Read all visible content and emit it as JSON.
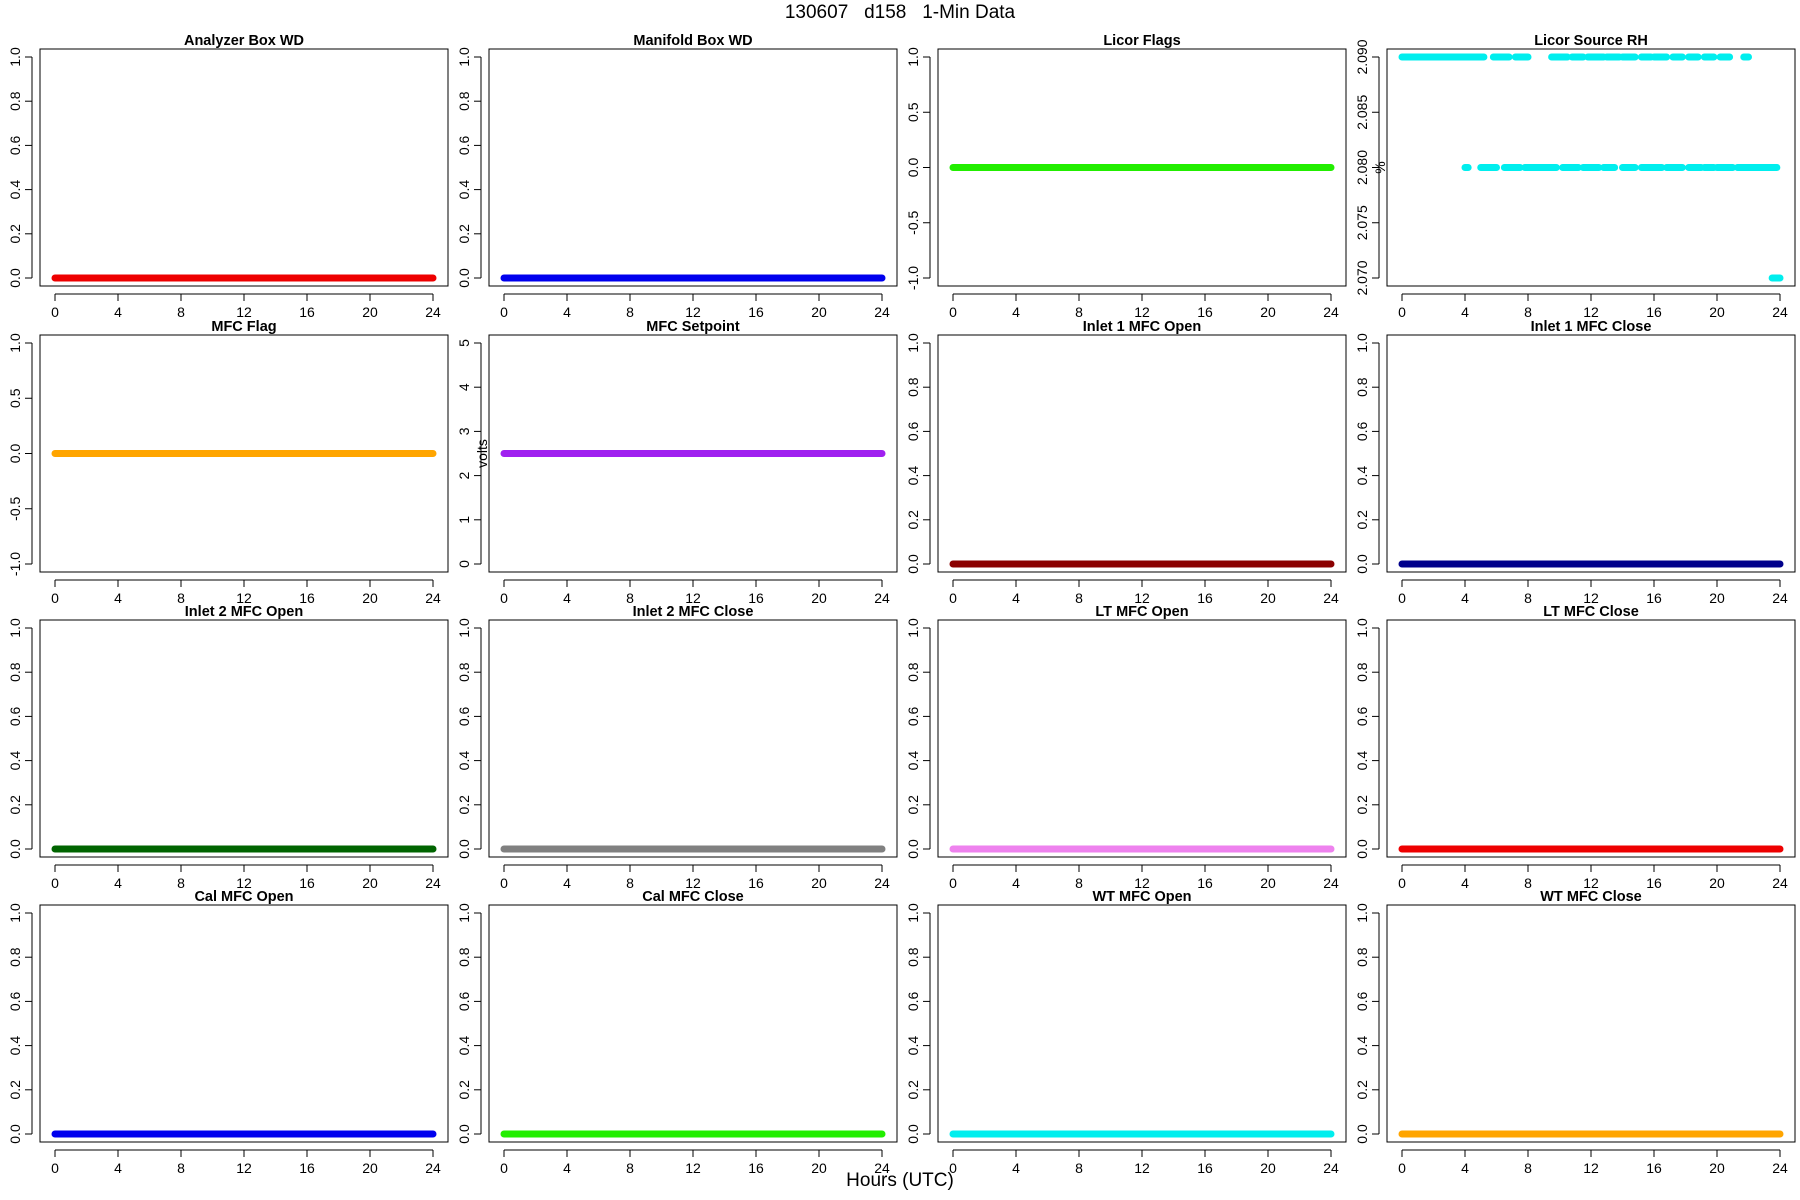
{
  "figure": {
    "title": "130607   d158   1-Min Data",
    "xlabel": "Hours (UTC)"
  },
  "chart_data": [
    {
      "type": "scatter",
      "title": "Analyzer Box WD",
      "xlabel": "",
      "ylabel": "",
      "xlim": [
        0,
        24
      ],
      "ylim": [
        0,
        1
      ],
      "xticks": [
        0,
        4,
        8,
        12,
        16,
        20,
        24
      ],
      "yticks": [
        0,
        0.2,
        0.4,
        0.6,
        0.8,
        1.0
      ],
      "ytick_labels": [
        "0.0",
        "0.2",
        "0.4",
        "0.6",
        "0.8",
        "1.0"
      ],
      "color": "#ee0000",
      "series": [
        {
          "segments": [
            [
              0,
              24,
              0
            ]
          ]
        }
      ]
    },
    {
      "type": "scatter",
      "title": "Manifold Box WD",
      "xlabel": "",
      "ylabel": "",
      "xlim": [
        0,
        24
      ],
      "ylim": [
        0,
        1
      ],
      "xticks": [
        0,
        4,
        8,
        12,
        16,
        20,
        24
      ],
      "yticks": [
        0,
        0.2,
        0.4,
        0.6,
        0.8,
        1.0
      ],
      "ytick_labels": [
        "0.0",
        "0.2",
        "0.4",
        "0.6",
        "0.8",
        "1.0"
      ],
      "color": "#0000ee",
      "series": [
        {
          "segments": [
            [
              0,
              24,
              0
            ]
          ]
        }
      ]
    },
    {
      "type": "scatter",
      "title": "Licor Flags",
      "xlabel": "",
      "ylabel": "",
      "xlim": [
        0,
        24
      ],
      "ylim": [
        -1,
        1
      ],
      "xticks": [
        0,
        4,
        8,
        12,
        16,
        20,
        24
      ],
      "yticks": [
        -1,
        -0.5,
        0,
        0.5,
        1.0
      ],
      "ytick_labels": [
        "-1.0",
        "-0.5",
        "0.0",
        "0.5",
        "1.0"
      ],
      "color": "#22ee00",
      "series": [
        {
          "segments": [
            [
              0,
              24,
              0
            ]
          ]
        }
      ]
    },
    {
      "type": "scatter",
      "title": "Licor Source RH",
      "xlabel": "",
      "ylabel": "%",
      "xlim": [
        0,
        24
      ],
      "ylim": [
        2.07,
        2.09
      ],
      "xticks": [
        0,
        4,
        8,
        12,
        16,
        20,
        24
      ],
      "yticks": [
        2.07,
        2.075,
        2.08,
        2.085,
        2.09
      ],
      "ytick_labels": [
        "2.070",
        "2.075",
        "2.080",
        "2.085",
        "2.090"
      ],
      "color": "#00eeee",
      "series": [
        {
          "segments": [
            [
              0,
              5.2,
              2.09
            ],
            [
              5.8,
              6.8,
              2.09
            ],
            [
              7.2,
              8.0,
              2.09
            ],
            [
              9.5,
              10.5,
              2.09
            ],
            [
              10.8,
              11.5,
              2.09
            ],
            [
              11.8,
              12.8,
              2.09
            ],
            [
              13.0,
              13.8,
              2.09
            ],
            [
              14.0,
              14.8,
              2.09
            ],
            [
              15.2,
              15.8,
              2.09
            ],
            [
              16.0,
              16.8,
              2.09
            ],
            [
              17.2,
              17.8,
              2.09
            ],
            [
              18.2,
              18.8,
              2.09
            ],
            [
              19.2,
              19.8,
              2.09
            ],
            [
              20.2,
              20.8,
              2.09
            ],
            [
              21.7,
              22.0,
              2.09
            ],
            [
              4.0,
              4.2,
              2.08
            ],
            [
              5.0,
              6.0,
              2.08
            ],
            [
              6.5,
              7.5,
              2.08
            ],
            [
              7.8,
              9.8,
              2.08
            ],
            [
              10.2,
              11.2,
              2.08
            ],
            [
              11.5,
              12.5,
              2.08
            ],
            [
              12.8,
              13.5,
              2.08
            ],
            [
              14.0,
              14.8,
              2.08
            ],
            [
              15.2,
              16.5,
              2.08
            ],
            [
              16.8,
              17.8,
              2.08
            ],
            [
              18.2,
              19.0,
              2.08
            ],
            [
              19.2,
              19.8,
              2.08
            ],
            [
              20.0,
              21.0,
              2.08
            ],
            [
              21.3,
              23.8,
              2.08
            ],
            [
              23.5,
              24.0,
              2.07
            ]
          ]
        }
      ]
    },
    {
      "type": "scatter",
      "title": "MFC Flag",
      "xlabel": "",
      "ylabel": "",
      "xlim": [
        0,
        24
      ],
      "ylim": [
        -1,
        1
      ],
      "xticks": [
        0,
        4,
        8,
        12,
        16,
        20,
        24
      ],
      "yticks": [
        -1,
        -0.5,
        0,
        0.5,
        1.0
      ],
      "ytick_labels": [
        "-1.0",
        "-0.5",
        "0.0",
        "0.5",
        "1.0"
      ],
      "color": "#ffa500",
      "series": [
        {
          "segments": [
            [
              0,
              24,
              0
            ]
          ]
        }
      ]
    },
    {
      "type": "scatter",
      "title": "MFC Setpoint",
      "xlabel": "",
      "ylabel": "volts",
      "xlim": [
        0,
        24
      ],
      "ylim": [
        0,
        5
      ],
      "xticks": [
        0,
        4,
        8,
        12,
        16,
        20,
        24
      ],
      "yticks": [
        0,
        1,
        2,
        3,
        4,
        5
      ],
      "ytick_labels": [
        "0",
        "1",
        "2",
        "3",
        "4",
        "5"
      ],
      "color": "#a020f0",
      "series": [
        {
          "segments": [
            [
              0,
              24,
              2.5
            ]
          ]
        }
      ]
    },
    {
      "type": "scatter",
      "title": "Inlet 1 MFC Open",
      "xlabel": "",
      "ylabel": "",
      "xlim": [
        0,
        24
      ],
      "ylim": [
        0,
        1
      ],
      "xticks": [
        0,
        4,
        8,
        12,
        16,
        20,
        24
      ],
      "yticks": [
        0,
        0.2,
        0.4,
        0.6,
        0.8,
        1.0
      ],
      "ytick_labels": [
        "0.0",
        "0.2",
        "0.4",
        "0.6",
        "0.8",
        "1.0"
      ],
      "color": "#8b0000",
      "series": [
        {
          "segments": [
            [
              0,
              24,
              0
            ]
          ]
        }
      ]
    },
    {
      "type": "scatter",
      "title": "Inlet 1 MFC Close",
      "xlabel": "",
      "ylabel": "",
      "xlim": [
        0,
        24
      ],
      "ylim": [
        0,
        1
      ],
      "xticks": [
        0,
        4,
        8,
        12,
        16,
        20,
        24
      ],
      "yticks": [
        0,
        0.2,
        0.4,
        0.6,
        0.8,
        1.0
      ],
      "ytick_labels": [
        "0.0",
        "0.2",
        "0.4",
        "0.6",
        "0.8",
        "1.0"
      ],
      "color": "#00008b",
      "series": [
        {
          "segments": [
            [
              0,
              24,
              0
            ]
          ]
        }
      ]
    },
    {
      "type": "scatter",
      "title": "Inlet 2 MFC Open",
      "xlabel": "",
      "ylabel": "",
      "xlim": [
        0,
        24
      ],
      "ylim": [
        0,
        1
      ],
      "xticks": [
        0,
        4,
        8,
        12,
        16,
        20,
        24
      ],
      "yticks": [
        0,
        0.2,
        0.4,
        0.6,
        0.8,
        1.0
      ],
      "ytick_labels": [
        "0.0",
        "0.2",
        "0.4",
        "0.6",
        "0.8",
        "1.0"
      ],
      "color": "#006400",
      "series": [
        {
          "segments": [
            [
              0,
              24,
              0
            ]
          ]
        }
      ]
    },
    {
      "type": "scatter",
      "title": "Inlet 2 MFC Close",
      "xlabel": "",
      "ylabel": "",
      "xlim": [
        0,
        24
      ],
      "ylim": [
        0,
        1
      ],
      "xticks": [
        0,
        4,
        8,
        12,
        16,
        20,
        24
      ],
      "yticks": [
        0,
        0.2,
        0.4,
        0.6,
        0.8,
        1.0
      ],
      "ytick_labels": [
        "0.0",
        "0.2",
        "0.4",
        "0.6",
        "0.8",
        "1.0"
      ],
      "color": "#808080",
      "series": [
        {
          "segments": [
            [
              0,
              24,
              0
            ]
          ]
        }
      ]
    },
    {
      "type": "scatter",
      "title": "LT MFC Open",
      "xlabel": "",
      "ylabel": "",
      "xlim": [
        0,
        24
      ],
      "ylim": [
        0,
        1
      ],
      "xticks": [
        0,
        4,
        8,
        12,
        16,
        20,
        24
      ],
      "yticks": [
        0,
        0.2,
        0.4,
        0.6,
        0.8,
        1.0
      ],
      "ytick_labels": [
        "0.0",
        "0.2",
        "0.4",
        "0.6",
        "0.8",
        "1.0"
      ],
      "color": "#ee82ee",
      "series": [
        {
          "segments": [
            [
              0,
              24,
              0
            ]
          ]
        }
      ]
    },
    {
      "type": "scatter",
      "title": "LT MFC Close",
      "xlabel": "",
      "ylabel": "",
      "xlim": [
        0,
        24
      ],
      "ylim": [
        0,
        1
      ],
      "xticks": [
        0,
        4,
        8,
        12,
        16,
        20,
        24
      ],
      "yticks": [
        0,
        0.2,
        0.4,
        0.6,
        0.8,
        1.0
      ],
      "ytick_labels": [
        "0.0",
        "0.2",
        "0.4",
        "0.6",
        "0.8",
        "1.0"
      ],
      "color": "#ee0000",
      "series": [
        {
          "segments": [
            [
              0,
              24,
              0
            ]
          ]
        }
      ]
    },
    {
      "type": "scatter",
      "title": "Cal MFC Open",
      "xlabel": "",
      "ylabel": "",
      "xlim": [
        0,
        24
      ],
      "ylim": [
        0,
        1
      ],
      "xticks": [
        0,
        4,
        8,
        12,
        16,
        20,
        24
      ],
      "yticks": [
        0,
        0.2,
        0.4,
        0.6,
        0.8,
        1.0
      ],
      "ytick_labels": [
        "0.0",
        "0.2",
        "0.4",
        "0.6",
        "0.8",
        "1.0"
      ],
      "color": "#0000ee",
      "series": [
        {
          "segments": [
            [
              0,
              24,
              0
            ]
          ]
        }
      ]
    },
    {
      "type": "scatter",
      "title": "Cal MFC Close",
      "xlabel": "",
      "ylabel": "",
      "xlim": [
        0,
        24
      ],
      "ylim": [
        0,
        1
      ],
      "xticks": [
        0,
        4,
        8,
        12,
        16,
        20,
        24
      ],
      "yticks": [
        0,
        0.2,
        0.4,
        0.6,
        0.8,
        1.0
      ],
      "ytick_labels": [
        "0.0",
        "0.2",
        "0.4",
        "0.6",
        "0.8",
        "1.0"
      ],
      "color": "#22ee00",
      "series": [
        {
          "segments": [
            [
              0,
              24,
              0
            ]
          ]
        }
      ]
    },
    {
      "type": "scatter",
      "title": "WT MFC Open",
      "xlabel": "",
      "ylabel": "",
      "xlim": [
        0,
        24
      ],
      "ylim": [
        0,
        1
      ],
      "xticks": [
        0,
        4,
        8,
        12,
        16,
        20,
        24
      ],
      "yticks": [
        0,
        0.2,
        0.4,
        0.6,
        0.8,
        1.0
      ],
      "ytick_labels": [
        "0.0",
        "0.2",
        "0.4",
        "0.6",
        "0.8",
        "1.0"
      ],
      "color": "#00eeee",
      "series": [
        {
          "segments": [
            [
              0,
              24,
              0
            ]
          ]
        }
      ]
    },
    {
      "type": "scatter",
      "title": "WT MFC Close",
      "xlabel": "",
      "ylabel": "",
      "xlim": [
        0,
        24
      ],
      "ylim": [
        0,
        1
      ],
      "xticks": [
        0,
        4,
        8,
        12,
        16,
        20,
        24
      ],
      "yticks": [
        0,
        0.2,
        0.4,
        0.6,
        0.8,
        1.0
      ],
      "ytick_labels": [
        "0.0",
        "0.2",
        "0.4",
        "0.6",
        "0.8",
        "1.0"
      ],
      "color": "#ffa500",
      "series": [
        {
          "segments": [
            [
              0,
              24,
              0
            ]
          ]
        }
      ]
    }
  ]
}
